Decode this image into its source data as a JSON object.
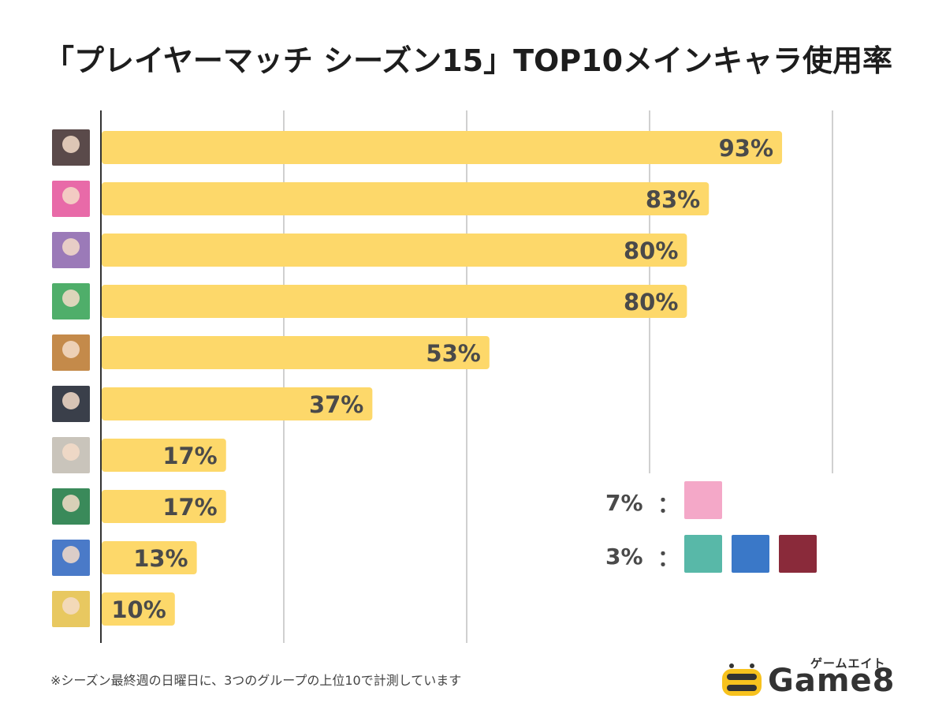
{
  "title": "「プレイヤーマッチ シーズン15」TOP10メインキャラ使用率",
  "note": "※シーズン最終週の日曜日に、3つのグループの上位10で計測しています",
  "chart_data": {
    "type": "bar",
    "orientation": "horizontal",
    "categories": [
      "",
      "",
      "",
      "",
      "",
      "",
      "",
      "",
      "",
      ""
    ],
    "values": [
      93,
      83,
      80,
      80,
      53,
      37,
      17,
      17,
      13,
      10
    ],
    "value_labels": [
      "93%",
      "83%",
      "80%",
      "80%",
      "53%",
      "37%",
      "17%",
      "17%",
      "13%",
      "10%"
    ],
    "title": "「プレイヤーマッチ シーズン15」TOP10メインキャラ使用率",
    "xlabel": "",
    "ylabel": "",
    "xlim": [
      0,
      100
    ],
    "grid": true,
    "bar_color": "#fdd86a",
    "avatar_colors": [
      "#5a4a4a",
      "#e86aa8",
      "#9b7ab8",
      "#4fae6a",
      "#c48a4a",
      "#3a3f4a",
      "#c9c4bb",
      "#3a8a5a",
      "#4a7ac8",
      "#e8c860"
    ]
  },
  "others": [
    {
      "pct": "7%",
      "colon": "：",
      "icons": [
        "#f4a8c8"
      ]
    },
    {
      "pct": "3%",
      "colon": "：",
      "icons": [
        "#58b8a8",
        "#3a78c8",
        "#8a2a3a"
      ]
    }
  ],
  "logo": {
    "kana": "ゲームエイト",
    "text": "Game8",
    "accent": "#f7c21e"
  }
}
